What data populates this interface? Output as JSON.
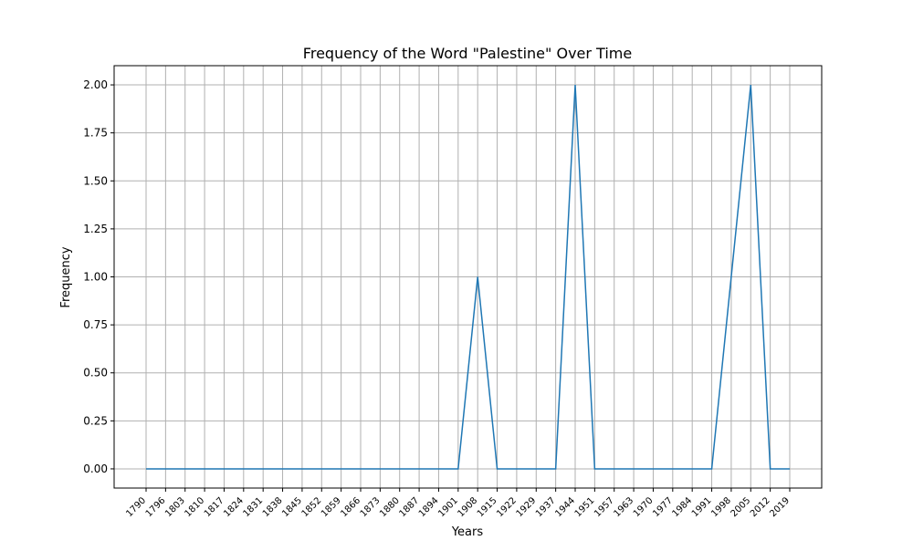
{
  "chart_data": {
    "type": "line",
    "title": "Frequency of the Word \"Palestine\" Over Time",
    "xlabel": "Years",
    "ylabel": "Frequency",
    "x_tick_labels": [
      "1790",
      "1796",
      "1803",
      "1810",
      "1817",
      "1824",
      "1831",
      "1838",
      "1845",
      "1852",
      "1859",
      "1866",
      "1873",
      "1880",
      "1887",
      "1894",
      "1901",
      "1908",
      "1915",
      "1922",
      "1929",
      "1937",
      "1944",
      "1951",
      "1957",
      "1963",
      "1970",
      "1977",
      "1984",
      "1991",
      "1998",
      "2005",
      "2012",
      "2019"
    ],
    "y_ticks": [
      0.0,
      0.25,
      0.5,
      0.75,
      1.0,
      1.25,
      1.5,
      1.75,
      2.0
    ],
    "y_tick_labels": [
      "0.00",
      "0.25",
      "0.50",
      "0.75",
      "1.00",
      "1.25",
      "1.50",
      "1.75",
      "2.00"
    ],
    "ylim": [
      -0.1,
      2.1
    ],
    "grid": true,
    "series": [
      {
        "color": "#1f77b4",
        "x": [
          "1790",
          "1796",
          "1803",
          "1810",
          "1817",
          "1824",
          "1831",
          "1838",
          "1845",
          "1852",
          "1859",
          "1866",
          "1873",
          "1880",
          "1887",
          "1894",
          "1901",
          "1908",
          "1915",
          "1922",
          "1929",
          "1937",
          "1944",
          "1951",
          "1957",
          "1963",
          "1970",
          "1977",
          "1984",
          "1991",
          "1998",
          "2005",
          "2012",
          "2019"
        ],
        "values": [
          0,
          0,
          0,
          0,
          0,
          0,
          0,
          0,
          0,
          0,
          0,
          0,
          0,
          0,
          0,
          0,
          0,
          1,
          0,
          0,
          0,
          0,
          2,
          0,
          0,
          0,
          0,
          0,
          0,
          0,
          1,
          2,
          0,
          0
        ]
      }
    ],
    "grid_color": "#b0b0b0",
    "axis_color": "#000000"
  }
}
